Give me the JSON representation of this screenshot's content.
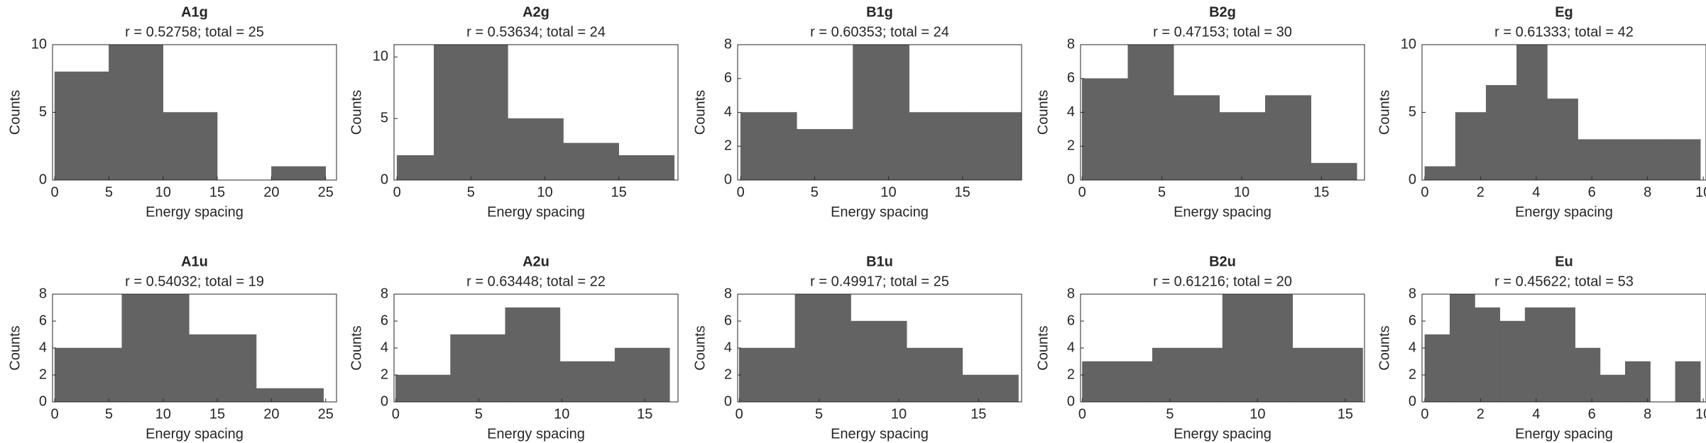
{
  "chart_data": [
    {
      "type": "histogram",
      "title": "A1g",
      "subtitle": "r = 0.52758; total = 25",
      "xlabel": "Energy spacing",
      "ylabel": "Counts",
      "color": "#636363",
      "bins": [
        0,
        5,
        10,
        15,
        20,
        25
      ],
      "values": [
        8,
        10,
        5,
        0,
        1
      ],
      "xlim": [
        -0.2,
        26
      ],
      "ylim": [
        0,
        10
      ],
      "xticks": [
        0,
        5,
        10,
        15,
        20,
        25
      ],
      "yticks": [
        0,
        5,
        10
      ]
    },
    {
      "type": "histogram",
      "title": "A2g",
      "subtitle": "r = 0.53634; total = 24",
      "xlabel": "Energy spacing",
      "ylabel": "Counts",
      "color": "#636363",
      "bins": [
        0,
        2.5,
        7.5,
        11.25,
        15,
        18.75
      ],
      "values": [
        2,
        11,
        5,
        3,
        2
      ],
      "xlim": [
        -0.2,
        19
      ],
      "ylim": [
        0,
        11
      ],
      "xticks": [
        0,
        5,
        10,
        15
      ],
      "yticks": [
        0,
        5,
        10
      ]
    },
    {
      "type": "histogram",
      "title": "B1g",
      "subtitle": "r = 0.60353; total = 24",
      "xlabel": "Energy spacing",
      "ylabel": "Counts",
      "color": "#636363",
      "bins": [
        0,
        3.8,
        7.6,
        11.4,
        15.2,
        19
      ],
      "values": [
        4,
        3,
        8,
        4,
        4
      ],
      "xlim": [
        -0.2,
        19
      ],
      "ylim": [
        0,
        8
      ],
      "xticks": [
        0,
        5,
        10,
        15
      ],
      "yticks": [
        0,
        2,
        4,
        6,
        8
      ]
    },
    {
      "type": "histogram",
      "title": "B2g",
      "subtitle": "r = 0.47153; total = 30",
      "xlabel": "Energy spacing",
      "ylabel": "Counts",
      "color": "#636363",
      "bins": [
        0,
        2.87,
        5.74,
        8.61,
        11.48,
        14.35,
        17.22
      ],
      "values": [
        6,
        8,
        5,
        4,
        5,
        1
      ],
      "xlim": [
        -0.1,
        17.7
      ],
      "ylim": [
        0,
        8
      ],
      "xticks": [
        0,
        5,
        10,
        15
      ],
      "yticks": [
        0,
        2,
        4,
        6,
        8
      ]
    },
    {
      "type": "histogram",
      "title": "Eg",
      "subtitle": "r = 0.61333; total = 42",
      "xlabel": "Energy spacing",
      "ylabel": "Counts",
      "color": "#636363",
      "bins": [
        0,
        1.1,
        2.2,
        3.3,
        4.4,
        5.5,
        6.6,
        7.7,
        8.8,
        9.9
      ],
      "values": [
        1,
        5,
        7,
        10,
        6,
        3,
        3,
        3,
        3
      ],
      "xlim": [
        -0.1,
        10.1
      ],
      "ylim": [
        0,
        10
      ],
      "xticks": [
        0,
        2,
        4,
        6,
        8,
        10
      ],
      "yticks": [
        0,
        5,
        10
      ]
    },
    {
      "type": "histogram",
      "title": "A1u",
      "subtitle": "r = 0.54032; total = 19",
      "xlabel": "Energy spacing",
      "ylabel": "Counts",
      "color": "#636363",
      "bins": [
        0,
        6.2,
        12.4,
        18.6,
        24.8
      ],
      "values": [
        4,
        8,
        5,
        1
      ],
      "xlim": [
        -0.2,
        26
      ],
      "ylim": [
        0,
        8
      ],
      "xticks": [
        0,
        5,
        10,
        15,
        20,
        25
      ],
      "yticks": [
        0,
        2,
        4,
        6,
        8
      ]
    },
    {
      "type": "histogram",
      "title": "A2u",
      "subtitle": "r = 0.63448; total = 22",
      "xlabel": "Energy spacing",
      "ylabel": "Counts",
      "color": "#636363",
      "bins": [
        0,
        3.3,
        6.6,
        9.9,
        13.2,
        16.5
      ],
      "values": [
        2,
        5,
        7,
        3,
        4
      ],
      "xlim": [
        -0.1,
        17
      ],
      "ylim": [
        0,
        8
      ],
      "xticks": [
        0,
        5,
        10,
        15
      ],
      "yticks": [
        0,
        2,
        4,
        6,
        8
      ]
    },
    {
      "type": "histogram",
      "title": "B1u",
      "subtitle": "r = 0.49917; total = 25",
      "xlabel": "Energy spacing",
      "ylabel": "Counts",
      "color": "#636363",
      "bins": [
        0,
        3.5,
        7,
        10.5,
        14,
        17.5
      ],
      "values": [
        4,
        8,
        6,
        4,
        2
      ],
      "xlim": [
        -0.1,
        17.7
      ],
      "ylim": [
        0,
        8
      ],
      "xticks": [
        0,
        5,
        10,
        15
      ],
      "yticks": [
        0,
        2,
        4,
        6,
        8
      ]
    },
    {
      "type": "histogram",
      "title": "B2u",
      "subtitle": "r = 0.61216; total = 20",
      "xlabel": "Energy spacing",
      "ylabel": "Counts",
      "color": "#636363",
      "bins": [
        0,
        4,
        8,
        12,
        16
      ],
      "values": [
        3,
        4,
        8,
        4
      ],
      "xlim": [
        -0.1,
        16.1
      ],
      "ylim": [
        0,
        8
      ],
      "xticks": [
        0,
        5,
        10,
        15
      ],
      "yticks": [
        0,
        2,
        4,
        6,
        8
      ]
    },
    {
      "type": "histogram",
      "title": "Eu",
      "subtitle": "r = 0.45622; total = 53",
      "xlabel": "Energy spacing",
      "ylabel": "Counts",
      "color": "#636363",
      "bins": [
        0,
        0.9,
        1.8,
        2.7,
        3.6,
        4.5,
        5.4,
        6.3,
        7.2,
        8.1,
        9,
        9.9
      ],
      "values": [
        5,
        8,
        7,
        6,
        7,
        7,
        4,
        2,
        3,
        0,
        3
      ],
      "xlim": [
        -0.1,
        10.1
      ],
      "ylim": [
        0,
        8
      ],
      "xticks": [
        0,
        2,
        4,
        6,
        8,
        10
      ],
      "yticks": [
        0,
        2,
        4,
        6,
        8
      ]
    }
  ]
}
